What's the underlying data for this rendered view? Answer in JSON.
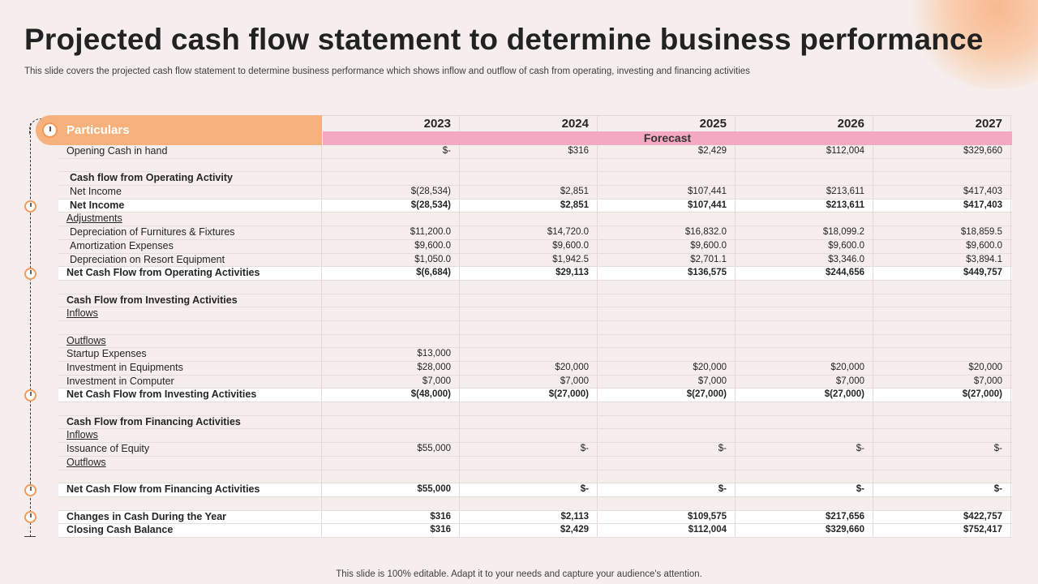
{
  "title": "Projected cash flow statement to determine business performance",
  "subtitle": "This slide covers the projected cash flow statement to determine business performance which shows inflow and outflow of cash from operating, investing and financing activities",
  "footer": "This slide is 100% editable. Adapt it to your needs and capture your audience's attention.",
  "header": {
    "particulars": "Particulars",
    "years": [
      "2023",
      "2024",
      "2025",
      "2026",
      "2027"
    ],
    "forecast": "Forecast"
  },
  "rows": [
    {
      "label": "Opening Cash in hand",
      "style": "plain",
      "values": [
        "$-",
        "$316",
        "$2,429",
        "$112,004",
        "$329,660"
      ]
    },
    {
      "label": "",
      "style": "plain",
      "values": [
        "",
        "",
        "",
        "",
        ""
      ]
    },
    {
      "label": "Cash flow from Operating Activity",
      "style": "head-ind",
      "values": [
        "",
        "",
        "",
        "",
        ""
      ]
    },
    {
      "label": "Net Income",
      "style": "ind",
      "values": [
        "$(28,534)",
        "$2,851",
        "$107,441",
        "$213,611",
        "$417,403"
      ]
    },
    {
      "label": "Net Income",
      "style": "bold-ind",
      "values": [
        "$(28,534)",
        "$2,851",
        "$107,441",
        "$213,611",
        "$417,403"
      ]
    },
    {
      "label": "Adjustments",
      "style": "u",
      "values": [
        "",
        "",
        "",
        "",
        ""
      ]
    },
    {
      "label": "Depreciation of Furnitures & Fixtures",
      "style": "ind",
      "values": [
        "$11,200.0",
        "$14,720.0",
        "$16,832.0",
        "$18,099.2",
        "$18,859.5"
      ]
    },
    {
      "label": "Amortization Expenses",
      "style": "ind",
      "values": [
        "$9,600.0",
        "$9,600.0",
        "$9,600.0",
        "$9,600.0",
        "$9,600.0"
      ]
    },
    {
      "label": "Depreciation on Resort Equipment",
      "style": "ind",
      "values": [
        "$1,050.0",
        "$1,942.5",
        "$2,701.1",
        "$3,346.0",
        "$3,894.1"
      ]
    },
    {
      "label": "Net Cash Flow from Operating Activities",
      "style": "bold",
      "values": [
        "$(6,684)",
        "$29,113",
        "$136,575",
        "$244,656",
        "$449,757"
      ]
    },
    {
      "label": "",
      "style": "plain",
      "values": [
        "",
        "",
        "",
        "",
        ""
      ]
    },
    {
      "label": "Cash Flow from Investing Activities",
      "style": "head",
      "values": [
        "",
        "",
        "",
        "",
        ""
      ]
    },
    {
      "label": "Inflows",
      "style": "u",
      "values": [
        "",
        "",
        "",
        "",
        ""
      ]
    },
    {
      "label": "",
      "style": "plain",
      "values": [
        "",
        "",
        "",
        "",
        ""
      ]
    },
    {
      "label": "Outflows",
      "style": "u",
      "values": [
        "",
        "",
        "",
        "",
        ""
      ]
    },
    {
      "label": "Startup Expenses",
      "style": "plain",
      "values": [
        "$13,000",
        "",
        "",
        "",
        ""
      ]
    },
    {
      "label": "Investment in Equipments",
      "style": "plain",
      "values": [
        "$28,000",
        "$20,000",
        "$20,000",
        "$20,000",
        "$20,000"
      ]
    },
    {
      "label": "Investment in Computer",
      "style": "plain",
      "values": [
        "$7,000",
        "$7,000",
        "$7,000",
        "$7,000",
        "$7,000"
      ]
    },
    {
      "label": "Net Cash Flow from Investing Activities",
      "style": "bold",
      "values": [
        "$(48,000)",
        "$(27,000)",
        "$(27,000)",
        "$(27,000)",
        "$(27,000)"
      ]
    },
    {
      "label": "",
      "style": "plain",
      "values": [
        "",
        "",
        "",
        "",
        ""
      ]
    },
    {
      "label": "Cash Flow from Financing Activities",
      "style": "head",
      "values": [
        "",
        "",
        "",
        "",
        ""
      ]
    },
    {
      "label": "Inflows",
      "style": "u",
      "values": [
        "",
        "",
        "",
        "",
        ""
      ]
    },
    {
      "label": "Issuance of Equity",
      "style": "plain",
      "values": [
        "$55,000",
        "$-",
        "$-",
        "$-",
        "$-"
      ]
    },
    {
      "label": "Outflows",
      "style": "u",
      "values": [
        "",
        "",
        "",
        "",
        ""
      ]
    },
    {
      "label": "",
      "style": "plain",
      "values": [
        "",
        "",
        "",
        "",
        ""
      ]
    },
    {
      "label": "Net Cash Flow from Financing Activities",
      "style": "bold",
      "values": [
        "$55,000",
        "$-",
        "$-",
        "$-",
        "$-"
      ]
    },
    {
      "label": "",
      "style": "plain",
      "values": [
        "",
        "",
        "",
        "",
        ""
      ]
    },
    {
      "label": "Changes in Cash During the Year",
      "style": "bold",
      "values": [
        "$316",
        "$2,113",
        "$109,575",
        "$217,656",
        "$422,757"
      ]
    },
    {
      "label": "Closing Cash Balance",
      "style": "bold",
      "values": [
        "$316",
        "$2,429",
        "$112,004",
        "$329,660",
        "$752,417"
      ]
    }
  ]
}
